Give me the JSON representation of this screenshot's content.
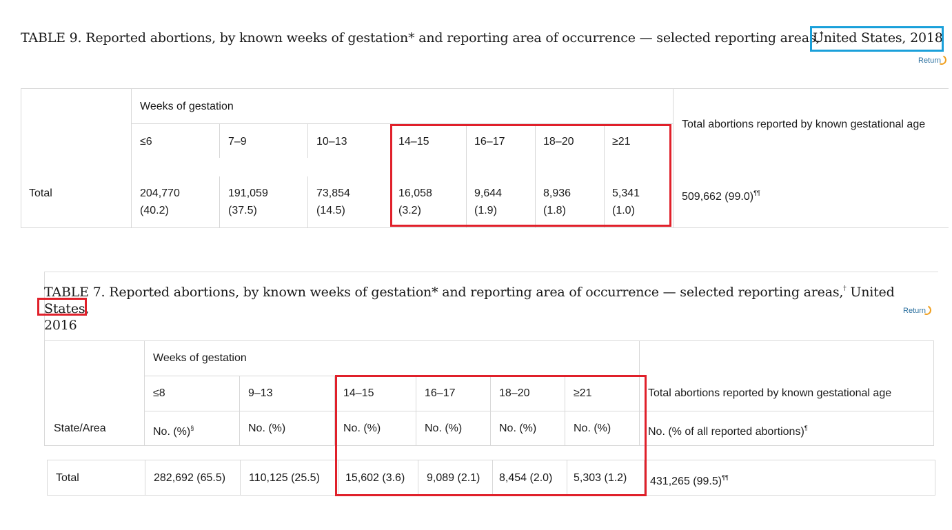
{
  "table9": {
    "title_main": "TABLE 9. Reported abortions, by known weeks of gestation* and reporting area of occurrence — selected reporting areas,",
    "title_dagger": "†",
    "title_highlight": "United States, 2018",
    "return_label": "Return",
    "group_header": "Weeks of gestation",
    "total_header": "Total abortions reported by known gestational age",
    "columns": [
      "≤6",
      "7–9",
      "10–13",
      "14–15",
      "16–17",
      "18–20",
      "≥21"
    ],
    "row_label": "Total",
    "counts": [
      "204,770",
      "191,059",
      "73,854",
      "16,058",
      "9,644",
      "8,936",
      "5,341"
    ],
    "percents": [
      "(40.2)",
      "(37.5)",
      "(14.5)",
      "(3.2)",
      "(1.9)",
      "(1.8)",
      "(1.0)"
    ],
    "total_value": "509,662 (99.0)",
    "total_note": "¶¶"
  },
  "table7": {
    "title_main": "TABLE 7. Reported abortions, by known weeks of gestation* and reporting area of occurrence — selected reporting areas,",
    "title_dagger": "†",
    "title_tail": "United States,",
    "title_year": "2016",
    "return_label": "Return",
    "group_header": "Weeks of gestation",
    "state_header": "State/Area",
    "total_header": "Total abortions reported by known gestational age",
    "total_subheader": "No. (% of all reported abortions)",
    "total_subheader_note": "¶",
    "columns": [
      "≤8",
      "9–13",
      "14–15",
      "16–17",
      "18–20",
      "≥21"
    ],
    "subheaders": [
      "No. (%)",
      "No. (%)",
      "No. (%)",
      "No. (%)",
      "No. (%)",
      "No. (%)"
    ],
    "first_subheader_note": "§",
    "row_label": "Total",
    "values": [
      "282,692 (65.5)",
      "110,125 (25.5)",
      "15,602 (3.6)",
      "9,089 (2.1)",
      "8,454 (2.0)",
      "5,303 (1.2)"
    ],
    "total_value": "431,265 (99.5)",
    "total_note": "¶¶"
  }
}
